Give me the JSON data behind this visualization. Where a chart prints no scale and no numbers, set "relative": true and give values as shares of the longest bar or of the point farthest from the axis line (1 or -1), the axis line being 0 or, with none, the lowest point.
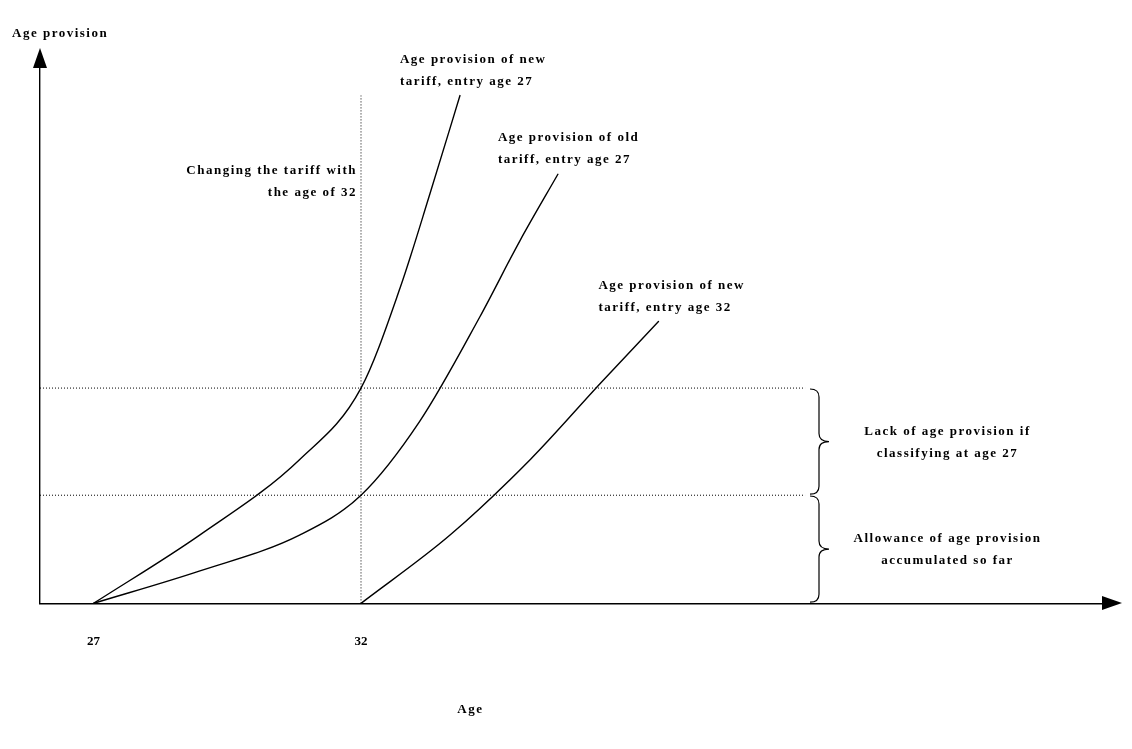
{
  "chart_data": {
    "type": "line",
    "xlabel": "Age",
    "ylabel": "Age provision",
    "relative": true,
    "xlim": [
      26,
      46
    ],
    "xticks": [
      27,
      32
    ],
    "grid": false,
    "legend": false,
    "marker": "none",
    "line_style": "solid",
    "series": [
      {
        "name": "Age provision of new tariff, entry age 27",
        "color": "#000000",
        "x": [
          27,
          28.99,
          30.86,
          32,
          32.73,
          33.29,
          33.85
        ],
        "values": [
          0,
          0.135,
          0.284,
          0.424,
          0.621,
          0.807,
          1
        ]
      },
      {
        "name": "Age provision of old tariff, entry age 27",
        "color": "#000000",
        "x": [
          27,
          28.99,
          30.86,
          32,
          33.1,
          34.22,
          34.97,
          35.68
        ],
        "values": [
          0,
          0.064,
          0.135,
          0.213,
          0.359,
          0.564,
          0.714,
          0.845
        ]
      },
      {
        "name": "Age provision of new tariff, entry age 32",
        "color": "#000000",
        "x": [
          32,
          33.67,
          35.17,
          36.48,
          37.56
        ],
        "values": [
          0,
          0.135,
          0.284,
          0.434,
          0.555
        ]
      }
    ],
    "ref_lines": [
      {
        "axis": "x",
        "value": 32,
        "label": "Changing the tariff with the age of 32",
        "line_style": "dotted"
      },
      {
        "axis": "y",
        "value": 0.424,
        "line_style": "dotted"
      },
      {
        "axis": "y",
        "value": 0.213,
        "line_style": "dotted"
      }
    ],
    "annotations": [
      "Lack of age provision if classifying at age 27",
      "Allowance of age provision accumulated so far"
    ]
  }
}
